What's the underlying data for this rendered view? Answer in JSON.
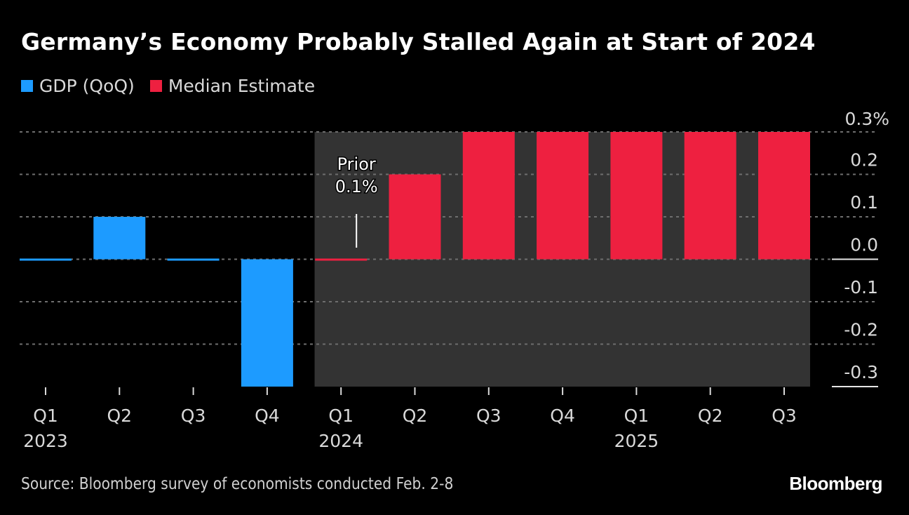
{
  "title": "Germany’s Economy Probably Stalled Again at Start of 2024",
  "legend": [
    {
      "label": "GDP (QoQ)",
      "color": "#1d9bff"
    },
    {
      "label": "Median Estimate",
      "color": "#ee2040"
    }
  ],
  "source": "Source: Bloomberg survey of economists conducted Feb. 2-8",
  "brand": "Bloomberg",
  "chart_data": {
    "type": "bar",
    "title": "Germany’s Economy Probably Stalled Again at Start of 2024",
    "xlabel": "",
    "ylabel": "",
    "categories": [
      "Q1 2023",
      "Q2 2023",
      "Q3 2023",
      "Q4 2023",
      "Q1 2024",
      "Q2 2024",
      "Q3 2024",
      "Q4 2024",
      "Q1 2025",
      "Q2 2025",
      "Q3 2025"
    ],
    "tick_labels": [
      {
        "q": "Q1",
        "year": "2023"
      },
      {
        "q": "Q2",
        "year": ""
      },
      {
        "q": "Q3",
        "year": ""
      },
      {
        "q": "Q4",
        "year": ""
      },
      {
        "q": "Q1",
        "year": "2024"
      },
      {
        "q": "Q2",
        "year": ""
      },
      {
        "q": "Q3",
        "year": ""
      },
      {
        "q": "Q4",
        "year": ""
      },
      {
        "q": "Q1",
        "year": "2025"
      },
      {
        "q": "Q2",
        "year": ""
      },
      {
        "q": "Q3",
        "year": ""
      }
    ],
    "series": [
      {
        "name": "GDP (QoQ)",
        "color": "#1d9bff",
        "values": [
          0.0,
          0.1,
          0.0,
          -0.3,
          null,
          null,
          null,
          null,
          null,
          null,
          null
        ]
      },
      {
        "name": "Median Estimate",
        "color": "#ee2040",
        "values": [
          null,
          null,
          null,
          null,
          0.0,
          0.2,
          0.3,
          0.3,
          0.3,
          0.3,
          0.3
        ]
      }
    ],
    "ylim": [
      -0.3,
      0.3
    ],
    "yticks": [
      0.3,
      0.2,
      0.1,
      0.0,
      -0.1,
      -0.2,
      -0.3
    ],
    "ytick_labels": [
      "0.3%",
      "0.2",
      "0.1",
      "0.0",
      "-0.1",
      "-0.2",
      "-0.3"
    ],
    "y_axis_position": "right",
    "grid": true,
    "shaded_forecast_from": "Q1 2024",
    "shade_color": "#333333",
    "legend_position": "top-left",
    "annotations": [
      {
        "category": "Q1 2024",
        "lines": [
          "Prior",
          "0.1%"
        ]
      }
    ]
  }
}
